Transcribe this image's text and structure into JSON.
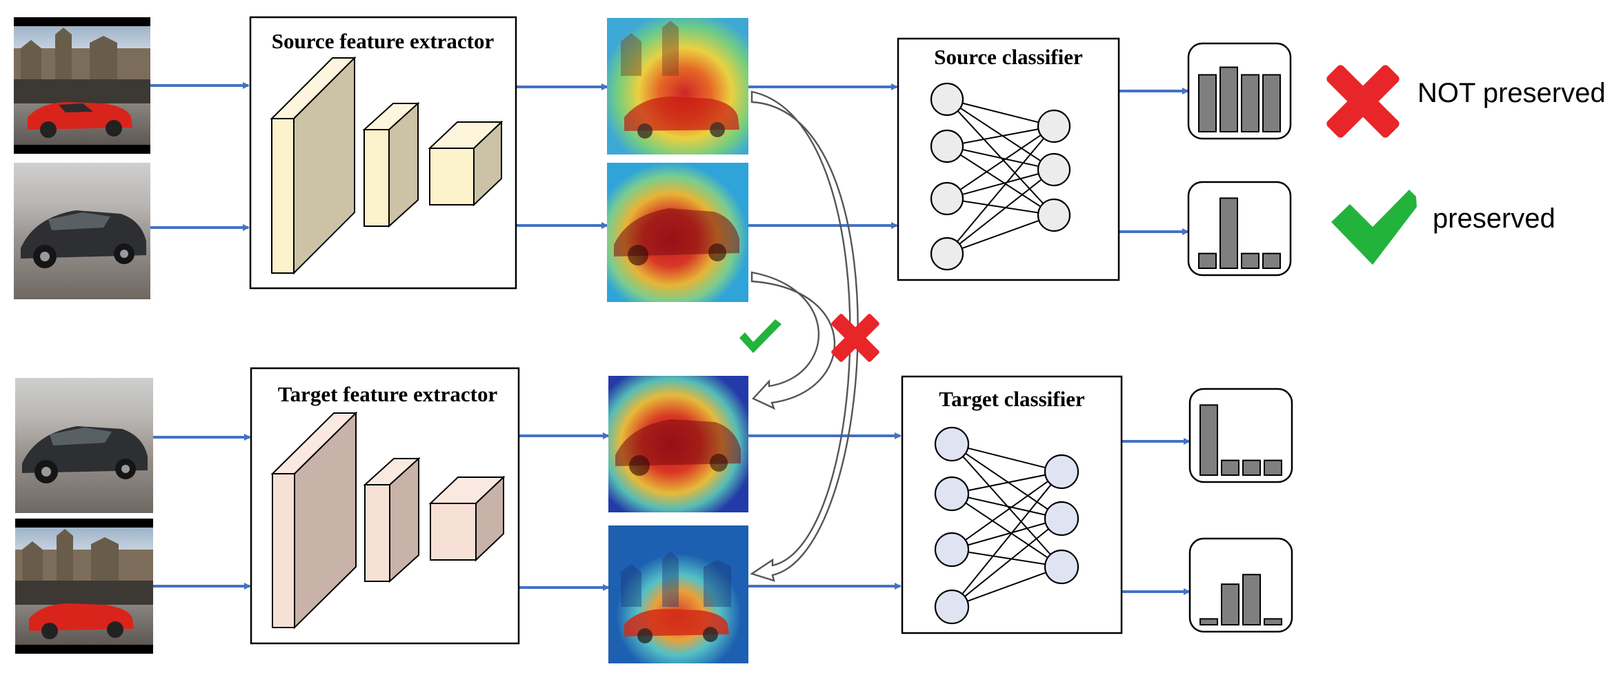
{
  "source_extractor": {
    "title": "Source feature extractor"
  },
  "target_extractor": {
    "title": "Target feature extractor"
  },
  "source_classifier": {
    "title": "Source classifier"
  },
  "target_classifier": {
    "title": "Target classifier"
  },
  "legend": {
    "not_preserved": "NOT preserved",
    "preserved": "preserved"
  },
  "colors": {
    "arrow": "#4472C4",
    "cross": "#E8262A",
    "check": "#22B33C",
    "bar": "#7f7f7f",
    "source_block": "#fcf2cc",
    "target_block": "#f7e1d6"
  },
  "icons": [
    "cross-icon",
    "check-icon"
  ],
  "histograms": [
    {
      "name": "source-sportscar",
      "values": [
        0.75,
        0.85,
        0.75,
        0.75
      ]
    },
    {
      "name": "source-sedan",
      "values": [
        0.2,
        0.95,
        0.2,
        0.2
      ]
    },
    {
      "name": "target-sedan",
      "values": [
        0.95,
        0.2,
        0.2,
        0.2
      ]
    },
    {
      "name": "target-sportscar",
      "values": [
        0.08,
        0.55,
        0.68,
        0.08
      ]
    }
  ]
}
